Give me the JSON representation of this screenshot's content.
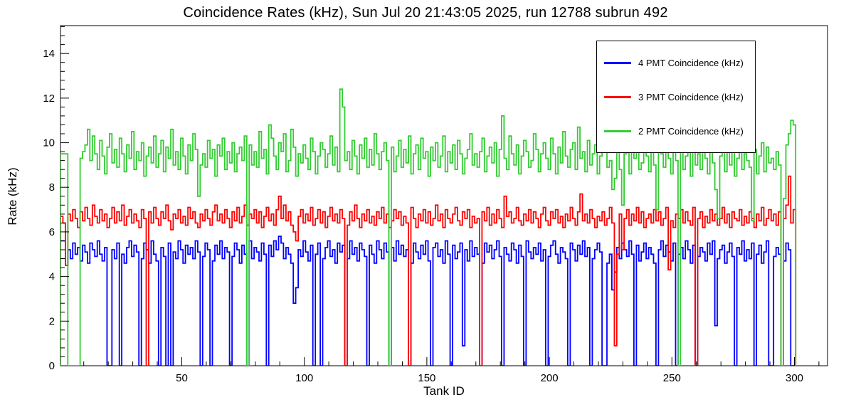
{
  "title": "Coincidence Rates (kHz), Sun Jul 20 21:43:05 2025, run 12788 subrun 492",
  "axes": {
    "xlabel": "Tank ID",
    "ylabel": "Rate (kHz)",
    "xlim": [
      0.5,
      313.5
    ],
    "ylim": [
      0,
      15.25
    ],
    "x_major_ticks": [
      50,
      100,
      150,
      200,
      250,
      300
    ],
    "x_minor_step": 10,
    "y_major_ticks": [
      0,
      2,
      4,
      6,
      8,
      10,
      12,
      14
    ],
    "y_minor_step": 0.4
  },
  "legend": {
    "entries": [
      {
        "label": "4 PMT Coincidence (kHz)",
        "color": "#0000ff"
      },
      {
        "label": "3 PMT Coincidence (kHz)",
        "color": "#ff0000"
      },
      {
        "label": "2 PMT Coincidence (kHz)",
        "color": "#33cc33"
      }
    ]
  },
  "chart_data": {
    "type": "line",
    "style": "step-histogram",
    "title": "Coincidence Rates (kHz), Sun Jul 20 21:43:05 2025, run 12788 subrun 492",
    "xlabel": "Tank ID",
    "ylabel": "Rate (kHz)",
    "xlim": [
      0.5,
      313.5
    ],
    "ylim": [
      0,
      15.25
    ],
    "grid": false,
    "legend_position": "top-right",
    "x_start": 1,
    "bin_width": 1,
    "series": [
      {
        "name": "4 PMT Coincidence (kHz)",
        "color": "#0000ff",
        "values": [
          5.6,
          5.6,
          4.5,
          5.2,
          4.8,
          5.5,
          5.0,
          5.3,
          4.7,
          5.4,
          5.1,
          4.6,
          5.5,
          5.2,
          4.9,
          5.6,
          5.0,
          4.7,
          5.3,
          0,
          0,
          5.2,
          4.8,
          5.5,
          0,
          5.0,
          4.6,
          5.3,
          5.6,
          4.9,
          5.4,
          5.1,
          0,
          4.8,
          5.5,
          5.2,
          4.6,
          5.6,
          5.0,
          4.7,
          0,
          5.3,
          4.9,
          0,
          5.5,
          0,
          5.1,
          4.8,
          5.6,
          5.2,
          4.6,
          5.4,
          5.0,
          5.3,
          4.8,
          5.6,
          5.1,
          0,
          4.9,
          5.5,
          5.2,
          0,
          4.7,
          5.4,
          5.0,
          5.6,
          4.8,
          5.3,
          5.1,
          0,
          4.9,
          5.5,
          5.2,
          4.6,
          5.4,
          5.0,
          0,
          5.6,
          4.8,
          5.3,
          5.1,
          4.7,
          5.5,
          5.0,
          0,
          5.4,
          4.9,
          5.6,
          5.2,
          5.8,
          5.5,
          4.8,
          5.3,
          5.0,
          4.6,
          2.8,
          3.5,
          5.2,
          4.9,
          5.6,
          5.1,
          4.7,
          5.4,
          0,
          5.0,
          5.5,
          0,
          4.8,
          5.3,
          5.6,
          4.9,
          5.2,
          4.6,
          5.5,
          5.1,
          5.4,
          0,
          4.8,
          5.6,
          5.0,
          5.3,
          4.7,
          5.5,
          5.2,
          4.9,
          0,
          5.4,
          5.0,
          4.6,
          5.6,
          5.2,
          4.8,
          5.5,
          5.1,
          0,
          5.3,
          4.7,
          5.6,
          5.0,
          5.4,
          4.9,
          5.2,
          0,
          4.6,
          5.5,
          5.1,
          4.8,
          5.4,
          5.0,
          5.6,
          4.7,
          0,
          5.3,
          5.5,
          4.9,
          5.2,
          4.6,
          5.6,
          5.0,
          0,
          5.4,
          4.8,
          5.1,
          5.5,
          0.9,
          5.2,
          4.7,
          5.6,
          4.9,
          5.3,
          5.0,
          0,
          4.6,
          5.5,
          5.1,
          5.4,
          4.8,
          5.2,
          5.6,
          4.9,
          0,
          5.3,
          5.0,
          4.7,
          5.5,
          5.2,
          4.6,
          5.4,
          4.9,
          0,
          5.6,
          5.1,
          4.8,
          5.3,
          5.0,
          5.5,
          4.7,
          5.2,
          0,
          4.9,
          5.4,
          5.6,
          5.0,
          4.6,
          5.3,
          5.1,
          4.8,
          0,
          5.5,
          5.2,
          4.7,
          5.4,
          5.0,
          5.6,
          4.9,
          5.3,
          0,
          4.8,
          5.2,
          5.5,
          5.1,
          0,
          0,
          4.6,
          5.0,
          3.4,
          4.2,
          5.3,
          4.8,
          5.5,
          5.2,
          4.9,
          5.6,
          5.0,
          0,
          5.4,
          4.7,
          5.1,
          5.5,
          4.8,
          5.3,
          5.0,
          4.6,
          0,
          5.2,
          5.6,
          4.9,
          5.4,
          5.1,
          4.7,
          5.5,
          0,
          5.0,
          5.3,
          4.8,
          5.6,
          5.2,
          4.6,
          5.4,
          0,
          4.9,
          5.3,
          5.1,
          4.7,
          5.5,
          5.0,
          5.6,
          1.8,
          4.8,
          5.2,
          5.4,
          4.6,
          5.1,
          5.5,
          4.9,
          0,
          5.3,
          5.0,
          5.6,
          4.7,
          5.2,
          4.8,
          5.5,
          0,
          5.0,
          5.4,
          4.6,
          5.1,
          5.6,
          0,
          0,
          4.9,
          5.3,
          5.0,
          0,
          4.7,
          5.5,
          5.2,
          0,
          0
        ]
      },
      {
        "name": "3 PMT Coincidence (kHz)",
        "color": "#ff0000",
        "values": [
          6.7,
          6.4,
          4.5,
          6.8,
          6.5,
          7.0,
          6.6,
          6.2,
          6.9,
          6.5,
          7.1,
          6.6,
          6.3,
          7.2,
          6.7,
          6.4,
          7.0,
          6.5,
          6.8,
          6.2,
          6.6,
          7.1,
          6.4,
          6.9,
          6.5,
          7.2,
          6.3,
          6.7,
          7.0,
          6.4,
          6.8,
          6.5,
          6.2,
          7.0,
          6.6,
          0,
          6.9,
          6.4,
          7.1,
          6.6,
          6.3,
          6.9,
          6.6,
          7.2,
          6.5,
          6.1,
          6.8,
          6.6,
          7.0,
          6.4,
          6.7,
          6.3,
          7.1,
          6.6,
          6.9,
          6.4,
          6.2,
          6.8,
          6.5,
          7.0,
          6.6,
          6.3,
          6.9,
          7.2,
          6.5,
          6.8,
          6.4,
          7.0,
          6.6,
          6.2,
          6.9,
          6.5,
          7.1,
          6.4,
          6.7,
          7.2,
          6.3,
          6.8,
          6.6,
          7.0,
          6.4,
          6.9,
          6.2,
          6.7,
          7.1,
          6.5,
          6.8,
          6.3,
          7.0,
          7.6,
          6.6,
          7.2,
          6.5,
          6.9,
          6.3,
          6.0,
          5.6,
          6.7,
          7.0,
          6.4,
          6.8,
          6.5,
          7.1,
          6.3,
          6.6,
          7.0,
          6.4,
          6.9,
          6.2,
          6.7,
          7.1,
          6.5,
          6.8,
          6.4,
          7.0,
          6.6,
          0,
          6.3,
          6.9,
          6.5,
          7.2,
          6.6,
          6.2,
          6.8,
          6.5,
          7.0,
          6.4,
          6.7,
          6.3,
          6.9,
          6.6,
          7.1,
          6.4,
          6.8,
          6.2,
          6.5,
          7.0,
          6.6,
          6.9,
          6.3,
          6.7,
          6.4,
          0,
          7.1,
          6.6,
          6.2,
          6.8,
          6.5,
          7.0,
          6.4,
          6.9,
          6.3,
          6.6,
          7.2,
          6.5,
          6.8,
          6.2,
          7.0,
          6.6,
          6.4,
          6.8,
          7.1,
          6.5,
          6.3,
          6.9,
          6.6,
          7.0,
          6.2,
          6.7,
          6.4,
          6.6,
          0,
          6.9,
          6.5,
          7.1,
          6.3,
          6.8,
          6.4,
          7.0,
          6.6,
          6.2,
          7.6,
          6.7,
          6.9,
          6.4,
          6.6,
          7.1,
          6.5,
          6.3,
          6.8,
          6.5,
          7.0,
          6.4,
          6.9,
          6.6,
          6.2,
          6.8,
          7.1,
          6.5,
          6.3,
          6.9,
          6.6,
          7.0,
          6.4,
          6.7,
          6.2,
          6.8,
          6.5,
          7.1,
          6.6,
          6.3,
          6.9,
          7.7,
          6.5,
          6.8,
          6.4,
          7.0,
          6.6,
          6.2,
          6.7,
          6.5,
          6.9,
          6.3,
          6.6,
          7.1,
          6.4,
          0.9,
          5.0,
          6.8,
          5.2,
          6.6,
          7.0,
          6.3,
          6.8,
          6.5,
          7.1,
          6.4,
          6.9,
          6.2,
          6.6,
          6.8,
          6.4,
          7.0,
          6.5,
          6.9,
          6.3,
          6.6,
          7.1,
          4.3,
          6.5,
          6.2,
          6.8,
          6.6,
          7.0,
          6.4,
          6.9,
          6.5,
          6.3,
          7.1,
          0,
          6.6,
          6.9,
          6.2,
          6.7,
          6.4,
          7.0,
          6.5,
          6.8,
          6.3,
          6.6,
          7.1,
          6.4,
          6.8,
          6.2,
          6.9,
          6.6,
          6.5,
          7.0,
          6.3,
          6.7,
          6.4,
          6.9,
          6.6,
          6.2,
          6.8,
          6.5,
          7.1,
          6.3,
          6.6,
          7.0,
          6.5,
          6.8,
          6.3,
          6.9,
          0,
          6.6,
          7.2,
          8.5,
          6.4,
          7.0
        ]
      },
      {
        "name": "2 PMT Coincidence (kHz)",
        "color": "#33cc33",
        "values": [
          9.5,
          9.5,
          9.5,
          0,
          0,
          0,
          0,
          0,
          9.3,
          9.6,
          9.9,
          10.6,
          9.2,
          10.3,
          9.5,
          8.8,
          10.1,
          9.4,
          8.6,
          9.8,
          10.4,
          9.1,
          9.7,
          8.9,
          10.2,
          9.5,
          8.7,
          9.9,
          9.3,
          10.5,
          8.8,
          9.6,
          9.2,
          10.0,
          8.5,
          9.4,
          9.8,
          9.1,
          10.3,
          8.9,
          9.5,
          10.1,
          8.7,
          9.8,
          9.3,
          10.6,
          9.0,
          9.6,
          8.8,
          10.2,
          9.4,
          8.6,
          9.9,
          9.2,
          10.4,
          9.7,
          7.6,
          9.0,
          9.5,
          8.9,
          10.1,
          9.3,
          9.7,
          8.5,
          9.9,
          9.4,
          10.2,
          8.8,
          9.6,
          9.1,
          10.0,
          8.7,
          9.5,
          9.8,
          9.2,
          10.3,
          0,
          9.9,
          9.0,
          9.6,
          8.9,
          10.5,
          9.3,
          9.7,
          8.6,
          10.8,
          10.2,
          9.4,
          8.8,
          10.0,
          9.6,
          10.4,
          8.7,
          9.2,
          10.6,
          9.8,
          8.5,
          9.5,
          9.1,
          9.9,
          9.3,
          8.8,
          10.2,
          9.6,
          8.6,
          9.4,
          10.0,
          9.7,
          8.9,
          9.5,
          10.3,
          9.0,
          9.8,
          8.7,
          12.4,
          11.6,
          9.2,
          9.6,
          8.8,
          10.1,
          9.4,
          8.6,
          9.9,
          9.3,
          10.2,
          8.9,
          9.7,
          9.0,
          10.4,
          9.5,
          8.8,
          9.6,
          10.0,
          9.2,
          0,
          9.8,
          8.7,
          9.4,
          10.1,
          8.9,
          9.7,
          9.1,
          10.3,
          8.6,
          9.5,
          9.9,
          8.8,
          10.2,
          9.3,
          9.6,
          8.5,
          9.8,
          9.2,
          10.0,
          8.9,
          9.4,
          10.3,
          8.7,
          9.6,
          9.1,
          9.9,
          8.8,
          10.1,
          9.5,
          8.6,
          9.3,
          9.7,
          10.4,
          9.0,
          9.5,
          8.9,
          9.6,
          10.2,
          8.7,
          9.4,
          9.8,
          9.1,
          10.0,
          8.5,
          9.7,
          11.2,
          9.3,
          8.8,
          10.3,
          9.5,
          9.0,
          9.9,
          8.6,
          9.4,
          10.1,
          9.6,
          8.9,
          9.2,
          10.4,
          9.7,
          8.7,
          9.5,
          10.0,
          9.3,
          8.8,
          10.2,
          9.5,
          8.6,
          9.8,
          9.1,
          10.5,
          9.4,
          8.9,
          9.7,
          10.0,
          8.8,
          10.7,
          9.3,
          9.6,
          8.7,
          10.1,
          9.0,
          9.5,
          9.9,
          8.6,
          9.4,
          10.3,
          9.7,
          8.9,
          9.2,
          7.9,
          8.4,
          9.6,
          8.8,
          7.2,
          9.5,
          10.0,
          8.6,
          9.9,
          9.3,
          10.4,
          8.8,
          9.1,
          9.7,
          9.4,
          8.7,
          10.2,
          9.0,
          7.0,
          9.8,
          9.5,
          8.9,
          10.1,
          9.3,
          8.6,
          9.6,
          9.2,
          0,
          9.9,
          8.8,
          9.4,
          10.3,
          8.5,
          9.7,
          9.0,
          9.5,
          8.8,
          10.0,
          9.3,
          8.6,
          9.8,
          9.1,
          7.9,
          6.6,
          9.4,
          10.1,
          8.7,
          9.6,
          9.0,
          9.9,
          8.5,
          9.3,
          10.2,
          8.8,
          9.5,
          9.2,
          8.9,
          6.5,
          9.7,
          8.6,
          9.4,
          10.0,
          8.7,
          9.8,
          9.1,
          9.3,
          8.8,
          9.6,
          9.0,
          0,
          7.5,
          9.9,
          10.4,
          11.0,
          10.8
        ]
      }
    ]
  }
}
